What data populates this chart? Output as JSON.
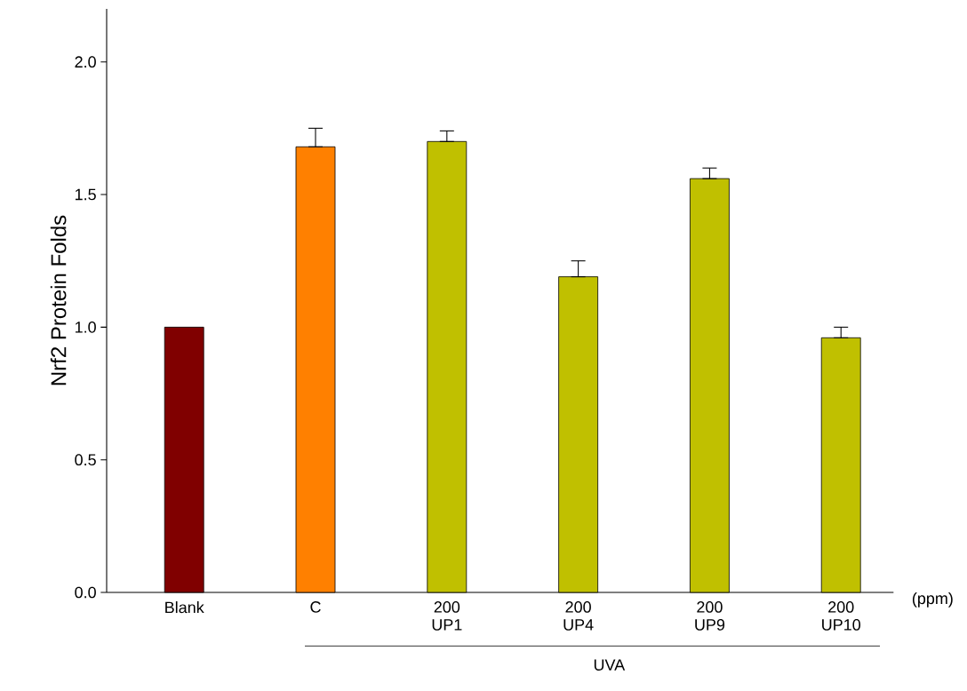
{
  "chart_data": {
    "type": "bar",
    "ylabel": "Nrf2 Protein Folds",
    "categories": [
      "Blank",
      "C",
      "200 UP1",
      "200 UP4",
      "200 UP9",
      "200 UP10"
    ],
    "values": [
      1.0,
      1.68,
      1.7,
      1.19,
      1.56,
      0.96
    ],
    "colors": [
      "#800000",
      "#ff8000",
      "#c0c000",
      "#c0c000",
      "#c0c000",
      "#c0c000"
    ],
    "errors": [
      null,
      [
        1.68,
        1.75
      ],
      [
        1.7,
        1.74
      ],
      [
        1.19,
        1.25
      ],
      [
        1.56,
        1.6
      ],
      [
        0.96,
        1.0
      ]
    ],
    "ylim": [
      0,
      2.2
    ],
    "yticks": [
      {
        "value": 0,
        "label": "0.0"
      },
      {
        "value": 0.5,
        "label": "0.5"
      },
      {
        "value": 1.0,
        "label": "1.0"
      },
      {
        "value": 1.5,
        "label": "1.5"
      },
      {
        "value": 2.0,
        "label": "2.0"
      }
    ],
    "annotations": [
      "(ppm)",
      "UVA"
    ]
  }
}
